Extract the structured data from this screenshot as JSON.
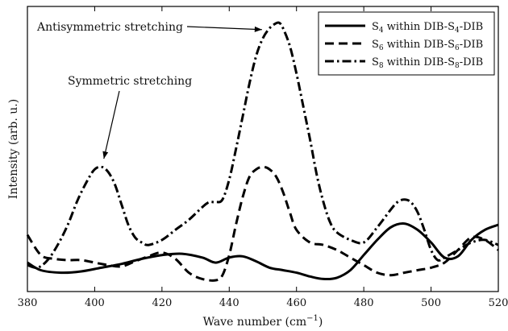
{
  "chart_data": {
    "type": "line",
    "xlabel": "Wave number (cm",
    "xlabel_sup": "−1",
    "xlabel_end": ")",
    "ylabel": "Intensity (arb. u.)",
    "xlim": [
      380,
      520
    ],
    "ylim": [
      0,
      1
    ],
    "x_ticks": [
      380,
      400,
      420,
      440,
      460,
      480,
      500,
      520
    ],
    "y_tick_labels": false,
    "grid": false,
    "legend": "top-right",
    "series": [
      {
        "name": "S4 within DIB-S4-DIB",
        "legend_parts": {
          "pre": "S",
          "sub": "4",
          "mid": " within DIB-S",
          "sub2": "4",
          "post": "-DIB"
        },
        "style": "solid",
        "x": [
          380,
          384,
          390,
          396,
          402,
          408,
          414,
          420,
          426,
          432,
          436,
          440,
          444,
          448,
          452,
          456,
          460,
          464,
          468,
          472,
          476,
          480,
          484,
          488,
          492,
          496,
          500,
          504,
          508,
          512,
          516,
          520
        ],
        "y": [
          0.07,
          0.04,
          0.03,
          0.035,
          0.05,
          0.065,
          0.085,
          0.1,
          0.105,
          0.09,
          0.07,
          0.09,
          0.095,
          0.075,
          0.05,
          0.04,
          0.03,
          0.015,
          0.005,
          0.01,
          0.04,
          0.1,
          0.16,
          0.21,
          0.225,
          0.2,
          0.15,
          0.09,
          0.095,
          0.16,
          0.2,
          0.22
        ]
      },
      {
        "name": "S6 within DIB-S6-DIB",
        "legend_parts": {
          "pre": "S",
          "sub": "6",
          "mid": " within DIB-S",
          "sub2": "6",
          "post": "-DIB"
        },
        "style": "dashed",
        "x": [
          380,
          384,
          388,
          392,
          396,
          400,
          404,
          408,
          412,
          416,
          420,
          424,
          428,
          432,
          436,
          438,
          440,
          442,
          444,
          446,
          448,
          450,
          452,
          454,
          456,
          458,
          460,
          464,
          468,
          472,
          476,
          480,
          484,
          488,
          492,
          496,
          500,
          504,
          508,
          512,
          516,
          520
        ],
        "y": [
          0.18,
          0.1,
          0.085,
          0.08,
          0.08,
          0.07,
          0.06,
          0.055,
          0.075,
          0.095,
          0.11,
          0.085,
          0.03,
          0.005,
          0.0,
          0.02,
          0.1,
          0.22,
          0.33,
          0.41,
          0.44,
          0.45,
          0.44,
          0.41,
          0.35,
          0.27,
          0.2,
          0.15,
          0.14,
          0.12,
          0.09,
          0.06,
          0.03,
          0.02,
          0.03,
          0.04,
          0.05,
          0.07,
          0.12,
          0.17,
          0.16,
          0.12
        ]
      },
      {
        "name": "S8 within DIB-S8-DIB",
        "legend_parts": {
          "pre": "S",
          "sub": "8",
          "mid": " within DIB-S",
          "sub2": "8",
          "post": "-DIB"
        },
        "style": "dashdot",
        "x": [
          380,
          383,
          386,
          389,
          392,
          395,
          398,
          400,
          402,
          404,
          406,
          408,
          410,
          412,
          414,
          416,
          420,
          424,
          428,
          432,
          434,
          436,
          438,
          440,
          442,
          444,
          446,
          448,
          450,
          452,
          454,
          455,
          456,
          458,
          460,
          462,
          464,
          466,
          468,
          470,
          472,
          476,
          480,
          484,
          488,
          490,
          492,
          494,
          496,
          498,
          500,
          502,
          504,
          508,
          512,
          516,
          520
        ],
        "y": [
          0.06,
          0.05,
          0.08,
          0.14,
          0.22,
          0.32,
          0.4,
          0.44,
          0.45,
          0.43,
          0.38,
          0.3,
          0.22,
          0.17,
          0.15,
          0.14,
          0.16,
          0.2,
          0.24,
          0.29,
          0.31,
          0.31,
          0.32,
          0.4,
          0.52,
          0.65,
          0.78,
          0.89,
          0.96,
          1.0,
          1.02,
          1.02,
          1.0,
          0.93,
          0.82,
          0.69,
          0.56,
          0.42,
          0.31,
          0.23,
          0.19,
          0.16,
          0.15,
          0.21,
          0.28,
          0.31,
          0.32,
          0.31,
          0.27,
          0.2,
          0.12,
          0.08,
          0.09,
          0.12,
          0.15,
          0.16,
          0.14
        ]
      }
    ],
    "annotations": [
      {
        "text": "Antisymmetric stretching",
        "x": 455,
        "y": 1.02
      },
      {
        "text": "Symmetric stretching",
        "x": 402,
        "y": 0.45
      }
    ]
  }
}
